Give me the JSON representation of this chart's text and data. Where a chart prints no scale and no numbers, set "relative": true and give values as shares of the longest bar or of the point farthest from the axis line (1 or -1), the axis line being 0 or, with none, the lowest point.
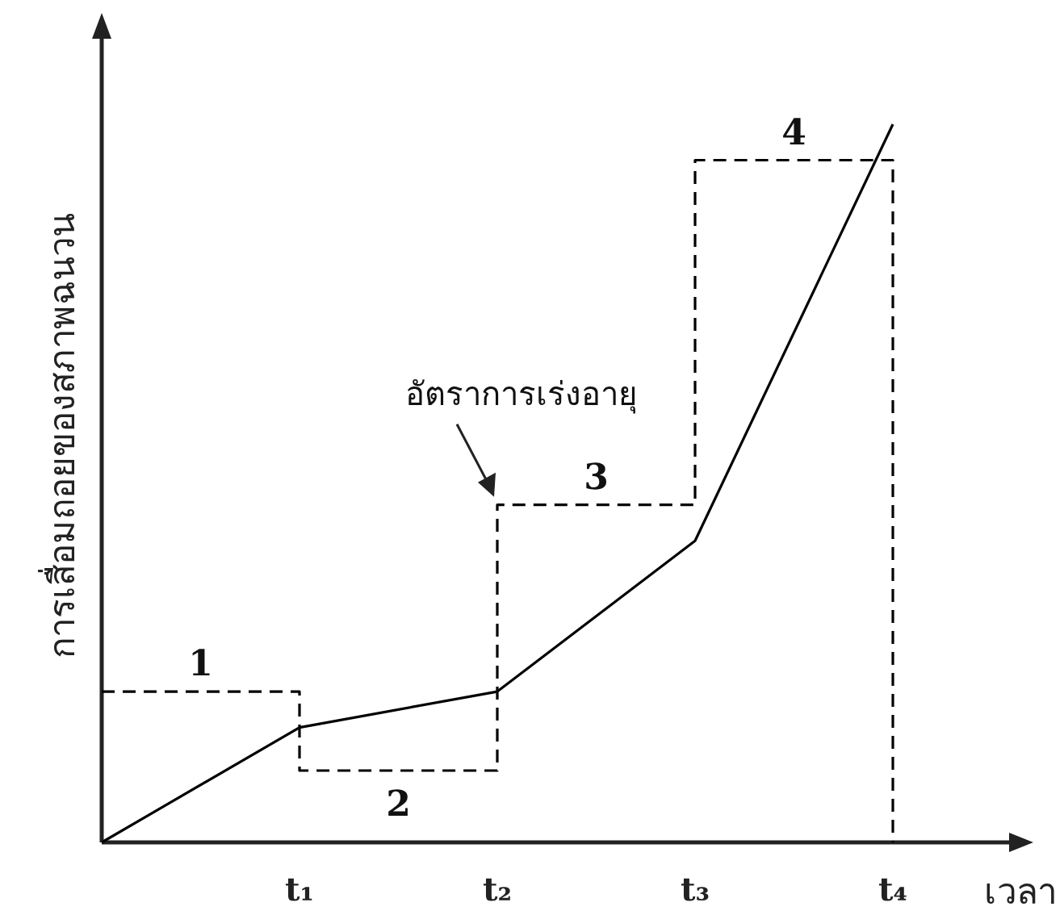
{
  "chart_data": {
    "type": "line",
    "relative": true,
    "xlabel": "เวลา",
    "ylabel": "การเสื่อมถอยของสภาพฉนวน",
    "categories": [
      null,
      "t₁",
      "t₂",
      "t₃",
      "t₄"
    ],
    "series": [
      {
        "type": "line",
        "color": "#000000",
        "values": [
          0,
          0.16,
          0.21,
          0.42,
          1.0
        ]
      },
      {
        "type": "step",
        "color": "#000000",
        "line_style": "dashed",
        "values": [
          0.21,
          0.1,
          0.47,
          0.95,
          0
        ]
      }
    ],
    "annotations": [
      {
        "text": "1",
        "y": 0.21
      },
      {
        "text": "2",
        "y": 0.1
      },
      {
        "text": "3",
        "y": 0.47
      },
      {
        "text": "4",
        "y": 0.95
      },
      {
        "text": "อัตราการเร่งอายุ",
        "x": "t₂",
        "y": 0.47
      }
    ]
  }
}
